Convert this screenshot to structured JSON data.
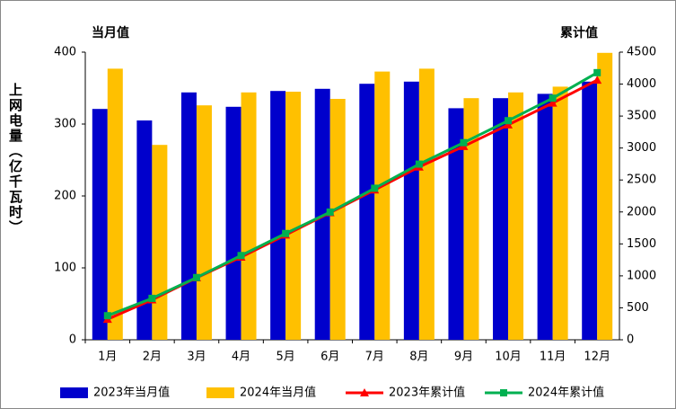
{
  "chart_data": {
    "type": "bar_line",
    "y_label": "上网电量（亿千瓦时）",
    "y_title": "当月值",
    "y2_title": "累计值",
    "categories": [
      "1月",
      "2月",
      "3月",
      "4月",
      "5月",
      "6月",
      "7月",
      "8月",
      "9月",
      "10月",
      "11月",
      "12月"
    ],
    "series": [
      {
        "name": "2023年当月值",
        "type": "bar",
        "color": "#0000cc",
        "values": [
          321,
          305,
          344,
          324,
          346,
          349,
          356,
          359,
          322,
          336,
          342,
          359
        ]
      },
      {
        "name": "2024年当月值",
        "type": "bar",
        "color": "#ffc000",
        "values": [
          377,
          271,
          326,
          344,
          345,
          335,
          373,
          377,
          336,
          344,
          352,
          399
        ]
      },
      {
        "name": "2023年累计值",
        "type": "line",
        "axis": "y2",
        "marker": "triangle",
        "color": "#ff0000",
        "values": [
          321,
          626,
          970,
          1294,
          1640,
          1989,
          2345,
          2704,
          3026,
          3362,
          3704,
          4063
        ]
      },
      {
        "name": "2024年累计值",
        "type": "line",
        "axis": "y2",
        "marker": "square",
        "color": "#00b050",
        "values": [
          377,
          648,
          974,
          1318,
          1663,
          1998,
          2371,
          2748,
          3084,
          3428,
          3780,
          4179
        ]
      }
    ],
    "ylim": [
      0,
      400
    ],
    "yticks": [
      0,
      100,
      200,
      300,
      400
    ],
    "y2lim": [
      0,
      4500
    ],
    "y2ticks": [
      0,
      500,
      1000,
      1500,
      2000,
      2500,
      3000,
      3500,
      4000,
      4500
    ]
  }
}
